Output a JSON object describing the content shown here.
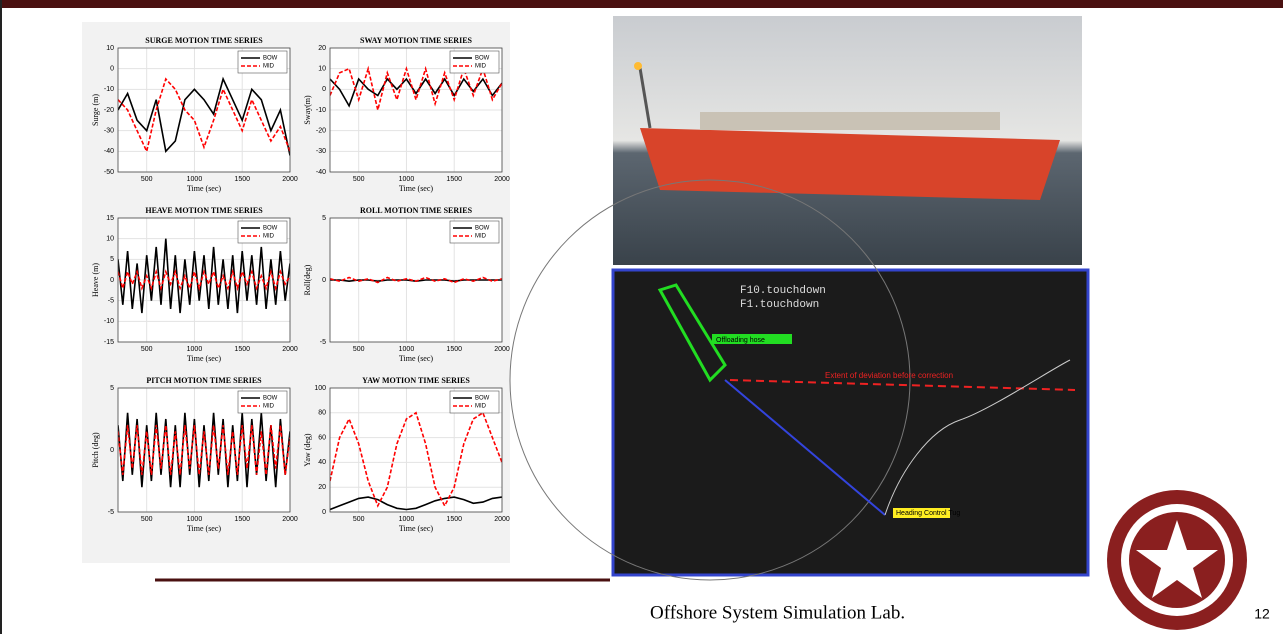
{
  "chart_data": [
    {
      "type": "line",
      "title": "SURGE MOTION TIME SERIES",
      "x_label": "Time (sec)",
      "y_label": "Surge (m)",
      "x": [
        200,
        300,
        400,
        500,
        600,
        700,
        800,
        900,
        1000,
        1100,
        1200,
        1300,
        1400,
        1500,
        1600,
        1700,
        1800,
        1900,
        2000
      ],
      "xlim": [
        200,
        2000
      ],
      "xticks": [
        500,
        1000,
        1500,
        2000
      ],
      "ylim": [
        -50,
        10
      ],
      "yticks": [
        -50,
        -40,
        -30,
        -20,
        -10,
        0,
        10
      ],
      "grid": true,
      "series": [
        {
          "name": "BOW",
          "color": "#000000",
          "dashed": false,
          "values": [
            -20,
            -12,
            -25,
            -30,
            -15,
            -40,
            -35,
            -15,
            -10,
            -15,
            -22,
            -5,
            -15,
            -25,
            -10,
            -15,
            -30,
            -20,
            -42
          ]
        },
        {
          "name": "MID",
          "color": "#ff0000",
          "dashed": true,
          "values": [
            -15,
            -20,
            -30,
            -40,
            -20,
            -5,
            -10,
            -20,
            -25,
            -38,
            -25,
            -10,
            -20,
            -30,
            -15,
            -25,
            -35,
            -28,
            -40
          ]
        }
      ]
    },
    {
      "type": "line",
      "title": "SWAY MOTION TIME SERIES",
      "x_label": "Time (sec)",
      "y_label": "Sway(m)",
      "x": [
        200,
        300,
        400,
        500,
        600,
        700,
        800,
        900,
        1000,
        1100,
        1200,
        1300,
        1400,
        1500,
        1600,
        1700,
        1800,
        1900,
        2000
      ],
      "xlim": [
        200,
        2000
      ],
      "xticks": [
        500,
        1000,
        1500,
        2000
      ],
      "ylim": [
        -40,
        20
      ],
      "yticks": [
        -40,
        -30,
        -20,
        -10,
        0,
        10,
        20
      ],
      "grid": true,
      "series": [
        {
          "name": "BOW",
          "color": "#000000",
          "dashed": false,
          "values": [
            5,
            0,
            -8,
            5,
            0,
            -3,
            5,
            0,
            5,
            -2,
            5,
            -2,
            5,
            -3,
            5,
            -1,
            5,
            -3,
            3
          ]
        },
        {
          "name": "MID",
          "color": "#ff0000",
          "dashed": true,
          "values": [
            -3,
            8,
            10,
            -5,
            10,
            -10,
            8,
            -5,
            10,
            -5,
            10,
            -7,
            8,
            -5,
            10,
            -3,
            10,
            -5,
            3
          ]
        }
      ]
    },
    {
      "type": "line",
      "title": "HEAVE MOTION TIME SERIES",
      "x_label": "Time (sec)",
      "y_label": "Heave (m)",
      "x": [
        200,
        250,
        300,
        350,
        400,
        450,
        500,
        550,
        600,
        650,
        700,
        750,
        800,
        850,
        900,
        950,
        1000,
        1050,
        1100,
        1150,
        1200,
        1250,
        1300,
        1350,
        1400,
        1450,
        1500,
        1550,
        1600,
        1650,
        1700,
        1750,
        1800,
        1850,
        1900,
        1950,
        2000
      ],
      "xlim": [
        200,
        2000
      ],
      "xticks": [
        500,
        1000,
        1500,
        2000
      ],
      "ylim": [
        -15,
        15
      ],
      "yticks": [
        -15,
        -10,
        -5,
        0,
        5,
        10,
        15
      ],
      "grid": true,
      "series": [
        {
          "name": "BOW",
          "color": "#000000",
          "dashed": false,
          "values": [
            5,
            -6,
            7,
            -7,
            4,
            -8,
            6,
            -5,
            8,
            -6,
            10,
            -7,
            6,
            -8,
            5,
            -6,
            7,
            -5,
            6,
            -7,
            8,
            -6,
            5,
            -7,
            6,
            -8,
            7,
            -5,
            6,
            -6,
            8,
            -7,
            5,
            -6,
            7,
            -5,
            4
          ]
        },
        {
          "name": "MID",
          "color": "#ff0000",
          "dashed": true,
          "values": [
            2,
            -2,
            2,
            -1,
            2,
            -2,
            1,
            -2,
            2,
            -2,
            2,
            -1,
            2,
            -2,
            1,
            -2,
            2,
            -2,
            2,
            -1,
            2,
            -2,
            1,
            -2,
            2,
            -2,
            2,
            -1,
            2,
            -2,
            1,
            -2,
            2,
            -2,
            2,
            -1,
            1
          ]
        }
      ]
    },
    {
      "type": "line",
      "title": "ROLL MOTION TIME SERIES",
      "x_label": "Time (sec)",
      "y_label": "Roll(deg)",
      "x": [
        200,
        300,
        400,
        500,
        600,
        700,
        800,
        900,
        1000,
        1100,
        1200,
        1300,
        1400,
        1500,
        1600,
        1700,
        1800,
        1900,
        2000
      ],
      "xlim": [
        200,
        2000
      ],
      "xticks": [
        500,
        1000,
        1500,
        2000
      ],
      "ylim": [
        -5,
        5
      ],
      "yticks": [
        -5,
        0,
        5
      ],
      "grid": true,
      "series": [
        {
          "name": "BOW",
          "color": "#000000",
          "dashed": false,
          "values": [
            0,
            0,
            -0.1,
            0,
            0,
            -0.1,
            0,
            0,
            0,
            -0.1,
            0,
            0,
            0,
            -0.1,
            0,
            0,
            0,
            0,
            0
          ]
        },
        {
          "name": "MID",
          "color": "#ff0000",
          "dashed": true,
          "values": [
            0.1,
            -0.1,
            0.2,
            -0.1,
            0.1,
            -0.2,
            0.2,
            -0.1,
            0.1,
            -0.1,
            0.2,
            -0.1,
            0.1,
            -0.2,
            0.1,
            -0.1,
            0.2,
            -0.1,
            0.1
          ]
        }
      ]
    },
    {
      "type": "line",
      "title": "PITCH MOTION TIME SERIES",
      "x_label": "Time (sec)",
      "y_label": "Pitch (deg)",
      "x": [
        200,
        250,
        300,
        350,
        400,
        450,
        500,
        550,
        600,
        650,
        700,
        750,
        800,
        850,
        900,
        950,
        1000,
        1050,
        1100,
        1150,
        1200,
        1250,
        1300,
        1350,
        1400,
        1450,
        1500,
        1550,
        1600,
        1650,
        1700,
        1750,
        1800,
        1850,
        1900,
        1950,
        2000
      ],
      "xlim": [
        200,
        2000
      ],
      "xticks": [
        500,
        1000,
        1500,
        2000
      ],
      "ylim": [
        -5,
        5
      ],
      "yticks": [
        -5,
        0,
        5
      ],
      "grid": true,
      "series": [
        {
          "name": "BOW",
          "color": "#000000",
          "dashed": false,
          "values": [
            2,
            -2.5,
            3,
            -2,
            2.5,
            -3,
            2,
            -2.5,
            3,
            -2,
            2.5,
            -3,
            2,
            -3,
            3,
            -2,
            2.5,
            -3,
            2,
            -2.5,
            3,
            -2,
            2.5,
            -3,
            2,
            -2.5,
            3,
            -3,
            2.5,
            -2,
            3,
            -2.5,
            2,
            -3,
            2.5,
            -2,
            1.5
          ]
        },
        {
          "name": "MID",
          "color": "#ff0000",
          "dashed": true,
          "values": [
            1.5,
            -2,
            2,
            -1.5,
            2,
            -2,
            1.5,
            -2,
            2,
            -1.5,
            2,
            -2,
            1.5,
            -2,
            2,
            -1.5,
            2,
            -2,
            1.5,
            -2,
            2,
            -1.5,
            2,
            -2,
            1.5,
            -2,
            2,
            -1.5,
            2,
            -2,
            1.5,
            -2,
            2,
            -1.5,
            2,
            -2,
            1
          ]
        }
      ]
    },
    {
      "type": "line",
      "title": "YAW MOTION TIME SERIES",
      "x_label": "Time (sec)",
      "y_label": "Yaw (deg)",
      "x": [
        200,
        300,
        400,
        500,
        600,
        700,
        800,
        900,
        1000,
        1100,
        1200,
        1300,
        1400,
        1500,
        1600,
        1700,
        1800,
        1900,
        2000
      ],
      "xlim": [
        200,
        2000
      ],
      "xticks": [
        500,
        1000,
        1500,
        2000
      ],
      "ylim": [
        0,
        100
      ],
      "yticks": [
        0,
        20,
        40,
        60,
        80,
        100
      ],
      "grid": true,
      "series": [
        {
          "name": "BOW",
          "color": "#000000",
          "dashed": false,
          "values": [
            2,
            5,
            8,
            11,
            12,
            10,
            6,
            3,
            2,
            3,
            6,
            9,
            11,
            12,
            10,
            7,
            8,
            11,
            12
          ]
        },
        {
          "name": "MID",
          "color": "#ff0000",
          "dashed": true,
          "values": [
            25,
            60,
            75,
            55,
            25,
            5,
            20,
            55,
            75,
            80,
            55,
            20,
            5,
            20,
            55,
            75,
            80,
            60,
            40
          ]
        }
      ]
    }
  ],
  "radar_labels": [
    "F10.touchdown",
    "F1.touchdown",
    "Offloading hose",
    "Extent of deviation before correction",
    "Heading Control Tug"
  ],
  "footer": "Offshore System Simulation Lab.",
  "page_number": "12"
}
